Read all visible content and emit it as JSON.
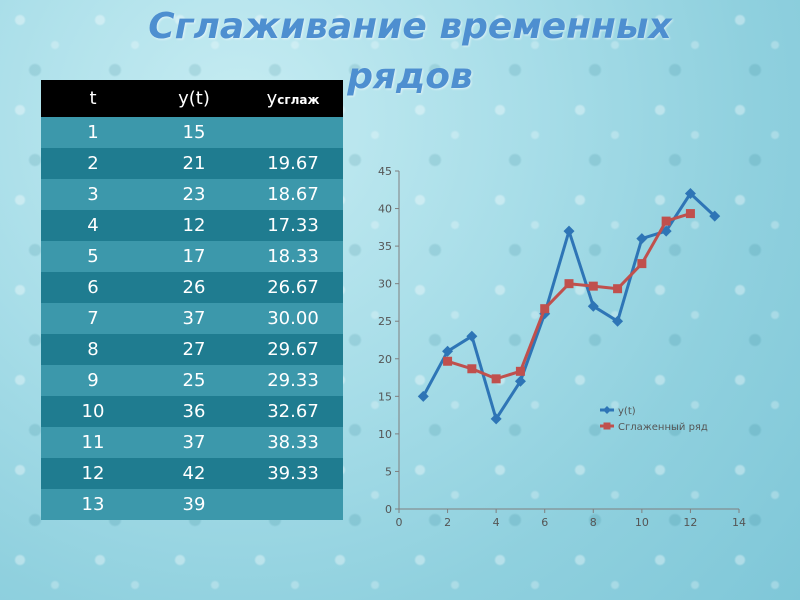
{
  "title": "Сглаживание временных рядов",
  "table": {
    "headers": {
      "t": "t",
      "y": "y(t)",
      "ys_main": "y",
      "ys_sub": "сглаж"
    },
    "rows": [
      [
        "1",
        "15",
        ""
      ],
      [
        "2",
        "21",
        "19.67"
      ],
      [
        "3",
        "23",
        "18.67"
      ],
      [
        "4",
        "12",
        "17.33"
      ],
      [
        "5",
        "17",
        "18.33"
      ],
      [
        "6",
        "26",
        "26.67"
      ],
      [
        "7",
        "37",
        "30.00"
      ],
      [
        "8",
        "27",
        "29.67"
      ],
      [
        "9",
        "25",
        "29.33"
      ],
      [
        "10",
        "36",
        "32.67"
      ],
      [
        "11",
        "37",
        "38.33"
      ],
      [
        "12",
        "42",
        "39.33"
      ],
      [
        "13",
        "39",
        ""
      ]
    ]
  },
  "chart_data": {
    "type": "line",
    "title": "",
    "xlabel": "",
    "ylabel": "",
    "xlim": [
      0,
      14
    ],
    "ylim": [
      0,
      45
    ],
    "x_ticks": [
      0,
      2,
      4,
      6,
      8,
      10,
      12,
      14
    ],
    "y_ticks": [
      0,
      5,
      10,
      15,
      20,
      25,
      30,
      35,
      40,
      45
    ],
    "grid": false,
    "legend_position": "right",
    "series": [
      {
        "name": "y(t)",
        "color": "#2e75b6",
        "marker": "diamond",
        "x": [
          1,
          2,
          3,
          4,
          5,
          6,
          7,
          8,
          9,
          10,
          11,
          12,
          13
        ],
        "y": [
          15,
          21,
          23,
          12,
          17,
          26,
          37,
          27,
          25,
          36,
          37,
          42,
          39
        ]
      },
      {
        "name": "Сглаженный ряд",
        "color": "#c0504d",
        "marker": "square",
        "x": [
          2,
          3,
          4,
          5,
          6,
          7,
          8,
          9,
          10,
          11,
          12
        ],
        "y": [
          19.67,
          18.67,
          17.33,
          18.33,
          26.67,
          30.0,
          29.67,
          29.33,
          32.67,
          38.33,
          39.33
        ]
      }
    ]
  }
}
